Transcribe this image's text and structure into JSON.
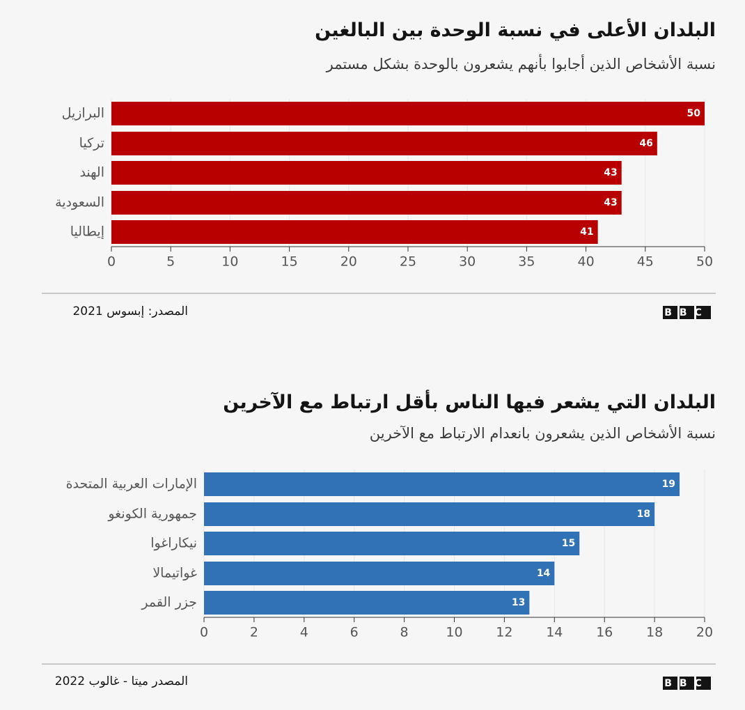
{
  "chart_data": [
    {
      "type": "bar",
      "orientation": "horizontal",
      "title": "البلدان الأعلى في نسبة الوحدة بين البالغين",
      "subtitle": "نسبة الأشخاص الذين أجابوا بأنهم يشعرون بالوحدة بشكل مستمر",
      "categories": [
        "البرازيل",
        "تركيا",
        "الهند",
        "السعودية",
        "إيطاليا"
      ],
      "values": [
        50,
        46,
        43,
        43,
        41
      ],
      "color": "#b80000",
      "xlim": [
        0,
        50
      ],
      "xticks": [
        0,
        5,
        10,
        15,
        20,
        25,
        30,
        35,
        40,
        45,
        50
      ],
      "source": "المصدر: إبسوس 2021",
      "logo": "BBC"
    },
    {
      "type": "bar",
      "orientation": "horizontal",
      "title": "البلدان التي يشعر فيها الناس بأقل ارتباط مع الآخرين",
      "subtitle": "نسبة الأشخاص الذين يشعرون بانعدام الارتباط مع الآخرين",
      "categories": [
        "الإمارات العربية المتحدة",
        "جمهورية الكونغو",
        "نيكاراغوا",
        "غواتيمالا",
        "جزر القمر"
      ],
      "values": [
        19,
        18,
        15,
        14,
        13
      ],
      "color": "#3072b5",
      "xlim": [
        0,
        20
      ],
      "xticks": [
        0,
        2,
        4,
        6,
        8,
        10,
        12,
        14,
        16,
        18,
        20
      ],
      "source": "المصدر ميتا - غالوب 2022",
      "logo": "BBC"
    }
  ]
}
